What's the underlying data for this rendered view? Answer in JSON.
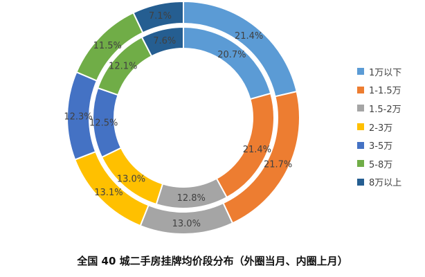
{
  "chart_data": {
    "type": "pie",
    "subtype": "double-donut",
    "title": "全国 40 城二手房挂牌均价段分布（外圈当月、内圈上月）",
    "categories": [
      "1万以下",
      "1-1.5万",
      "1.5-2万",
      "2-3万",
      "3-5万",
      "5-8万",
      "8万以上"
    ],
    "colors": [
      "#5b9bd5",
      "#ed7d31",
      "#a5a5a5",
      "#ffc000",
      "#4472c4",
      "#70ad47",
      "#255e91"
    ],
    "series": [
      {
        "ring": "outer",
        "values": [
          21.4,
          21.7,
          13.0,
          13.1,
          12.3,
          11.5,
          7.1
        ],
        "labels": [
          "21.4%",
          "21.7%",
          "13.0%",
          "13.1%",
          "12.3%",
          "11.5%",
          "7.1%"
        ]
      },
      {
        "ring": "inner",
        "values": [
          20.7,
          21.4,
          12.8,
          13.0,
          12.5,
          12.1,
          7.6
        ],
        "labels": [
          "20.7%",
          "21.4%",
          "12.8%",
          "13.0%",
          "12.5%",
          "12.1%",
          "7.6%"
        ]
      }
    ],
    "legend_position": "right"
  }
}
